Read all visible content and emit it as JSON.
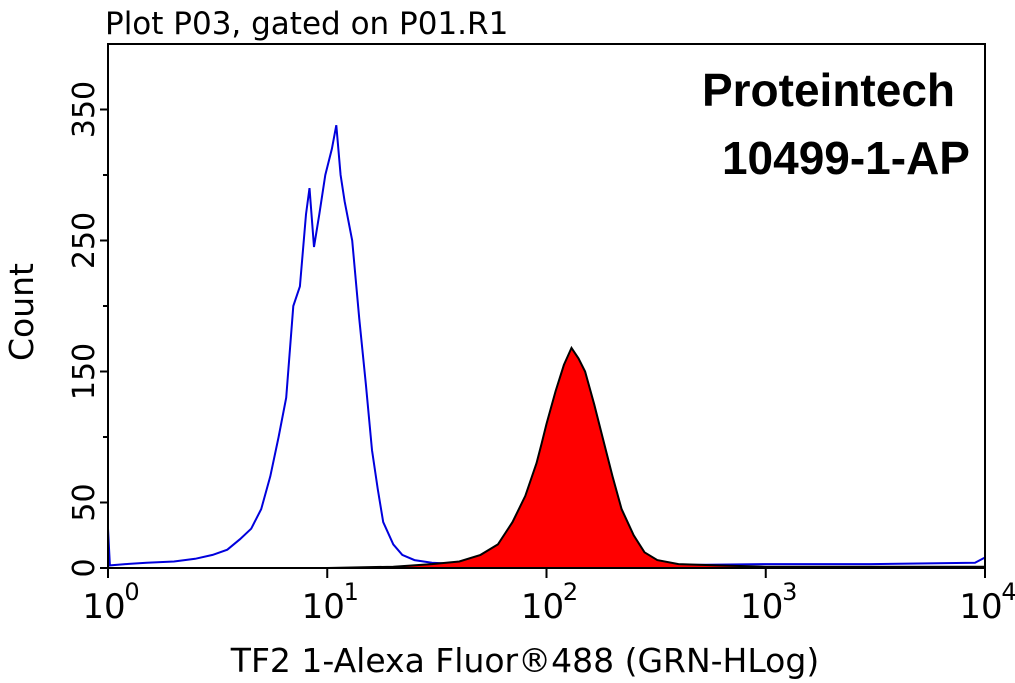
{
  "chart_data": {
    "type": "histogram-overlay",
    "title": "Plot P03, gated on P01.R1",
    "x_label": "TF2 1-Alexa Fluor®488 (GRN-HLog)",
    "y_label": "Count",
    "annotations": [
      "Proteintech",
      "10499-1-AP"
    ],
    "x_scale": "log",
    "xlim": [
      1,
      10000
    ],
    "xticks": [
      {
        "value": 1,
        "label": "10",
        "sup": "0"
      },
      {
        "value": 10,
        "label": "10",
        "sup": "1"
      },
      {
        "value": 100,
        "label": "10",
        "sup": "2"
      },
      {
        "value": 1000,
        "label": "10",
        "sup": "3"
      },
      {
        "value": 10000,
        "label": "10",
        "sup": "4"
      }
    ],
    "ylim": [
      0,
      400
    ],
    "yticks": [
      0,
      50,
      150,
      250,
      350
    ],
    "yminorticks": [
      100,
      200,
      300
    ],
    "series": [
      {
        "color": "#0000dd",
        "fill": "none",
        "x": [
          1,
          1.02,
          1.2,
          1.5,
          2,
          2.5,
          3,
          3.5,
          4,
          4.5,
          5,
          5.5,
          6,
          6.5,
          7,
          7.5,
          8,
          8.3,
          8.7,
          9.2,
          9.8,
          10.5,
          11,
          11.5,
          12,
          13,
          14,
          15,
          16,
          17,
          18,
          20,
          22,
          25,
          30,
          40,
          60,
          100,
          300,
          1000,
          3000,
          9000,
          10000
        ],
        "values": [
          30,
          2,
          3,
          4,
          5,
          7,
          10,
          14,
          22,
          30,
          45,
          70,
          100,
          130,
          200,
          215,
          270,
          290,
          245,
          270,
          300,
          320,
          338,
          300,
          280,
          250,
          190,
          140,
          90,
          60,
          35,
          18,
          10,
          6,
          4,
          3,
          2,
          2,
          2,
          3,
          3,
          4,
          8
        ]
      },
      {
        "color": "#000000",
        "fill": "#ff0000",
        "x": [
          10,
          20,
          30,
          40,
          50,
          60,
          70,
          80,
          90,
          95,
          100,
          110,
          120,
          130,
          140,
          150,
          165,
          180,
          200,
          220,
          250,
          280,
          320,
          400,
          600,
          1000,
          10000
        ],
        "values": [
          0,
          1,
          3,
          5,
          10,
          18,
          35,
          55,
          80,
          95,
          110,
          135,
          155,
          168,
          160,
          150,
          125,
          100,
          70,
          45,
          25,
          12,
          6,
          3,
          2,
          1,
          1
        ]
      }
    ]
  }
}
